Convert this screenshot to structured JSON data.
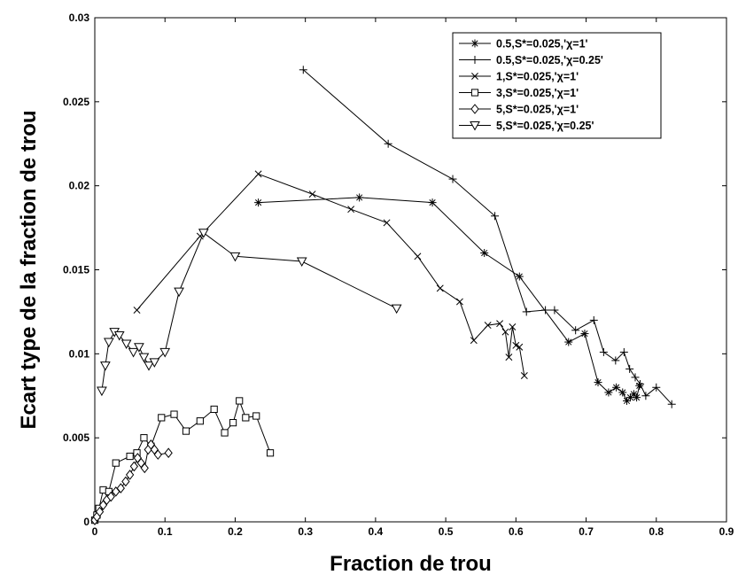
{
  "chart_data": {
    "type": "line",
    "xlabel": "Fraction de trou",
    "ylabel": "Ecart type de la fraction de trou",
    "xlim": [
      0,
      0.9
    ],
    "ylim": [
      0,
      0.03
    ],
    "xticks": [
      "0",
      "0.1",
      "0.2",
      "0.3",
      "0.4",
      "0.5",
      "0.6",
      "0.7",
      "0.8",
      "0.9"
    ],
    "yticks": [
      "0",
      "0.005",
      "0.01",
      "0.015",
      "0.02",
      "0.025",
      "0.03"
    ],
    "legend_position": "top-right",
    "line_color": "#000000",
    "series": [
      {
        "name": "0.5,S*=0.025,'χ=1'",
        "marker": "asterisk",
        "x": [
          0.233,
          0.377,
          0.481,
          0.555,
          0.605,
          0.675,
          0.698,
          0.717,
          0.732,
          0.743,
          0.752,
          0.758,
          0.763,
          0.768,
          0.772,
          0.776
        ],
        "y": [
          0.019,
          0.0193,
          0.019,
          0.016,
          0.0146,
          0.0107,
          0.0112,
          0.0083,
          0.0077,
          0.008,
          0.0077,
          0.0072,
          0.0074,
          0.0076,
          0.0074,
          0.0081
        ]
      },
      {
        "name": "0.5,S*=0.025,'χ=0.25'",
        "marker": "plus",
        "x": [
          0.297,
          0.418,
          0.51,
          0.57,
          0.615,
          0.642,
          0.655,
          0.685,
          0.711,
          0.725,
          0.742,
          0.754,
          0.762,
          0.77,
          0.777,
          0.785,
          0.8,
          0.822
        ],
        "y": [
          0.0269,
          0.0225,
          0.0204,
          0.0182,
          0.0125,
          0.0126,
          0.0126,
          0.0114,
          0.012,
          0.0101,
          0.0096,
          0.0101,
          0.0091,
          0.0086,
          0.0082,
          0.0075,
          0.008,
          0.007
        ]
      },
      {
        "name": "1,S*=0.025,'χ=1'",
        "marker": "x",
        "x": [
          0.06,
          0.15,
          0.233,
          0.31,
          0.365,
          0.416,
          0.46,
          0.492,
          0.52,
          0.54,
          0.56,
          0.577,
          0.585,
          0.59,
          0.595,
          0.6,
          0.605,
          0.612
        ],
        "y": [
          0.0126,
          0.017,
          0.0207,
          0.0195,
          0.0186,
          0.0178,
          0.0158,
          0.0139,
          0.0131,
          0.0108,
          0.0117,
          0.0118,
          0.0113,
          0.0098,
          0.0116,
          0.0105,
          0.0104,
          0.0087
        ]
      },
      {
        "name": "3,S*=0.025,'χ=1'",
        "marker": "square",
        "x": [
          0.0,
          0.003,
          0.006,
          0.012,
          0.02,
          0.03,
          0.05,
          0.06,
          0.07,
          0.08,
          0.095,
          0.113,
          0.13,
          0.15,
          0.17,
          0.185,
          0.197,
          0.206,
          0.215,
          0.23,
          0.25
        ],
        "y": [
          0.0001,
          0.0004,
          0.0008,
          0.0019,
          0.0018,
          0.0035,
          0.0039,
          0.0041,
          0.005,
          0.0045,
          0.0062,
          0.0064,
          0.0054,
          0.006,
          0.0067,
          0.0053,
          0.0059,
          0.0072,
          0.0062,
          0.0063,
          0.0041
        ]
      },
      {
        "name": "5,S*=0.025,'χ=1'",
        "marker": "diamond",
        "x": [
          0.0,
          0.003,
          0.007,
          0.012,
          0.017,
          0.023,
          0.03,
          0.037,
          0.044,
          0.05,
          0.056,
          0.061,
          0.066,
          0.071,
          0.076,
          0.08,
          0.085,
          0.09,
          0.105
        ],
        "y": [
          0.0001,
          0.0003,
          0.0006,
          0.001,
          0.0013,
          0.0015,
          0.0018,
          0.002,
          0.0024,
          0.0028,
          0.0033,
          0.0038,
          0.0035,
          0.0032,
          0.0043,
          0.0046,
          0.0043,
          0.004,
          0.0041
        ]
      },
      {
        "name": "5,S*=0.025,'χ=0.25'",
        "marker": "triangle-down",
        "x": [
          0.01,
          0.015,
          0.02,
          0.028,
          0.035,
          0.045,
          0.055,
          0.063,
          0.07,
          0.077,
          0.085,
          0.1,
          0.12,
          0.155,
          0.2,
          0.295,
          0.43
        ],
        "y": [
          0.0078,
          0.0093,
          0.0107,
          0.0113,
          0.0111,
          0.0106,
          0.0101,
          0.0104,
          0.0098,
          0.0093,
          0.0095,
          0.0101,
          0.0137,
          0.0172,
          0.0158,
          0.0155,
          0.0127
        ]
      }
    ]
  }
}
